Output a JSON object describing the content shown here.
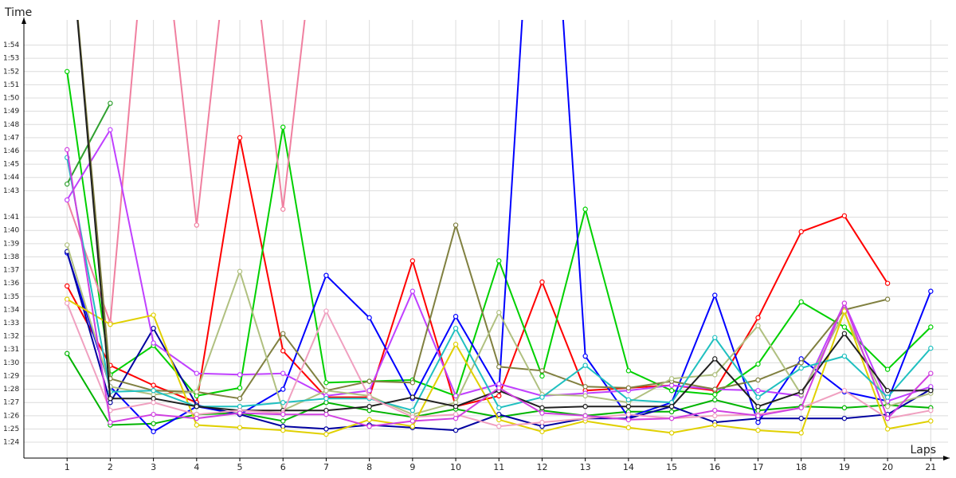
{
  "chart_data": {
    "type": "line",
    "y_label": "Time",
    "x_label": "Laps",
    "xlim": [
      0,
      21.4
    ],
    "ylim": [
      82.8,
      115.9
    ],
    "xticks": [
      1,
      2,
      3,
      4,
      5,
      6,
      7,
      8,
      9,
      10,
      11,
      12,
      13,
      14,
      15,
      16,
      17,
      18,
      19,
      20,
      21
    ],
    "yticks": [
      {
        "value": 84,
        "label": "1:24"
      },
      {
        "value": 85,
        "label": "1:25"
      },
      {
        "value": 86,
        "label": "1:26"
      },
      {
        "value": 87,
        "label": "1:27"
      },
      {
        "value": 88,
        "label": "1:28"
      },
      {
        "value": 89,
        "label": "1:29"
      },
      {
        "value": 90,
        "label": "1:30"
      },
      {
        "value": 91,
        "label": "1:31"
      },
      {
        "value": 92,
        "label": "1:32"
      },
      {
        "value": 93,
        "label": "1:33"
      },
      {
        "value": 94,
        "label": "1:34"
      },
      {
        "value": 95,
        "label": "1:35"
      },
      {
        "value": 96,
        "label": "1:36"
      },
      {
        "value": 97,
        "label": "1:37"
      },
      {
        "value": 98,
        "label": "1:38"
      },
      {
        "value": 99,
        "label": "1:39"
      },
      {
        "value": 100,
        "label": "1:40"
      },
      {
        "value": 101,
        "label": "1:41"
      },
      {
        "value": 103,
        "label": "1:43"
      },
      {
        "value": 104,
        "label": "1:44"
      },
      {
        "value": 105,
        "label": "1:45"
      },
      {
        "value": 106,
        "label": "1:46"
      },
      {
        "value": 107,
        "label": "1:47"
      },
      {
        "value": 108,
        "label": "1:48"
      },
      {
        "value": 109,
        "label": "1:49"
      },
      {
        "value": 110,
        "label": "1:50"
      },
      {
        "value": 111,
        "label": "1:51"
      },
      {
        "value": 112,
        "label": "1:52"
      },
      {
        "value": 113,
        "label": "1:53"
      },
      {
        "value": 114,
        "label": "1:54"
      }
    ],
    "grid": true,
    "x": [
      1,
      2,
      3,
      4,
      5,
      6,
      7,
      8,
      9,
      10,
      11,
      12,
      13,
      14,
      15,
      16,
      17,
      18,
      19,
      20,
      21
    ],
    "series": [
      {
        "color": "#ff0000",
        "values": [
          95.8,
          89.8,
          88.3,
          87.0,
          107.0,
          90.9,
          87.4,
          87.4,
          97.7,
          86.7,
          87.5,
          96.1,
          87.9,
          88.1,
          88.3,
          87.9,
          93.4,
          99.9,
          101.1,
          96.0,
          null
        ]
      },
      {
        "color": "#00b400",
        "values": [
          90.7,
          85.3,
          85.4,
          86.1,
          86.2,
          85.6,
          87.0,
          86.4,
          85.9,
          86.5,
          85.9,
          86.4,
          86.0,
          86.3,
          86.3,
          87.2,
          86.4,
          86.7,
          86.6,
          86.8,
          86.6
        ]
      },
      {
        "color": "#00d000",
        "values": [
          112.0,
          89.1,
          91.3,
          87.5,
          88.1,
          107.8,
          88.5,
          88.6,
          88.7,
          87.5,
          97.7,
          89.0,
          101.6,
          89.4,
          87.9,
          87.6,
          89.9,
          94.6,
          92.7,
          89.5,
          92.7
        ]
      },
      {
        "color": "#30a030",
        "values": [
          103.5,
          109.6,
          null,
          null,
          null,
          null,
          null,
          null,
          null,
          null,
          null,
          null,
          null,
          null,
          null,
          null,
          null,
          null,
          null,
          null,
          null
        ]
      },
      {
        "color": "#f080a0",
        "values": [
          102.3,
          93.0,
          130,
          100.4,
          130,
          101.6,
          130,
          null,
          null,
          null,
          null,
          null,
          null,
          null,
          null,
          null,
          null,
          null,
          null,
          null,
          null
        ]
      },
      {
        "color": "#0000ff",
        "values": [
          98.3,
          88.2,
          84.8,
          86.7,
          86.1,
          88.0,
          96.6,
          93.4,
          87.3,
          93.5,
          87.9,
          140,
          90.5,
          85.9,
          87.0,
          95.1,
          85.5,
          90.3,
          87.8,
          87.1,
          95.4
        ]
      },
      {
        "color": "#0000a0",
        "values": [
          98.4,
          87.0,
          92.6,
          86.8,
          86.1,
          85.2,
          85.0,
          85.3,
          85.1,
          84.9,
          86.1,
          85.2,
          85.8,
          85.8,
          86.7,
          85.5,
          85.8,
          85.8,
          85.8,
          86.1,
          88.0
        ]
      },
      {
        "color": "#c040ff",
        "values": [
          102.3,
          107.6,
          91.5,
          89.2,
          89.1,
          89.2,
          87.5,
          87.9,
          95.4,
          87.5,
          88.4,
          87.5,
          87.7,
          87.9,
          88.3,
          88.0,
          87.9,
          87.5,
          94.5,
          87.1,
          88.2
        ]
      },
      {
        "color": "#808040",
        "values": [
          125,
          88.8,
          87.9,
          87.8,
          87.3,
          92.2,
          87.9,
          88.6,
          88.5,
          100.4,
          89.7,
          89.4,
          88.2,
          88.1,
          88.6,
          88.0,
          88.7,
          90.0,
          94.0,
          94.8,
          null
        ]
      },
      {
        "color": "#b0c080",
        "values": [
          98.9,
          88.2,
          87.6,
          87.8,
          96.9,
          86.4,
          87.9,
          87.5,
          86.1,
          87.0,
          93.8,
          87.6,
          87.5,
          87.0,
          88.8,
          89.1,
          92.8,
          87.6,
          93.8,
          86.7,
          87.7
        ]
      },
      {
        "color": "#e0d000",
        "values": [
          94.8,
          92.9,
          93.6,
          85.3,
          85.1,
          84.9,
          84.6,
          85.7,
          85.2,
          91.4,
          85.7,
          84.8,
          85.6,
          85.1,
          84.7,
          85.3,
          84.9,
          84.7,
          93.9,
          85.0,
          85.6
        ]
      },
      {
        "color": "#20c0c0",
        "values": [
          105.5,
          87.8,
          87.9,
          86.7,
          86.7,
          87.0,
          87.3,
          87.3,
          86.4,
          92.6,
          86.6,
          87.4,
          89.8,
          87.2,
          87.0,
          91.9,
          87.4,
          89.6,
          90.5,
          87.4,
          91.1
        ]
      },
      {
        "color": "#202020",
        "values": [
          125,
          87.3,
          87.3,
          86.7,
          86.4,
          86.4,
          86.4,
          86.7,
          87.4,
          86.7,
          87.9,
          86.6,
          86.7,
          86.7,
          86.7,
          90.3,
          86.7,
          87.8,
          92.2,
          87.9,
          87.9
        ]
      },
      {
        "color": "#f0a0c0",
        "values": [
          94.5,
          86.4,
          87.0,
          86.1,
          86.4,
          86.2,
          93.9,
          87.4,
          85.9,
          86.1,
          85.2,
          85.5,
          85.8,
          86.1,
          85.8,
          86.0,
          86.1,
          86.6,
          87.9,
          85.8,
          86.4
        ]
      },
      {
        "color": "#d040e0",
        "values": [
          106.1,
          85.5,
          86.1,
          85.8,
          86.2,
          86.1,
          86.1,
          85.2,
          85.6,
          85.8,
          88.1,
          86.2,
          86.0,
          85.7,
          85.8,
          86.4,
          86.0,
          86.6,
          94.5,
          85.8,
          89.2
        ]
      }
    ]
  }
}
